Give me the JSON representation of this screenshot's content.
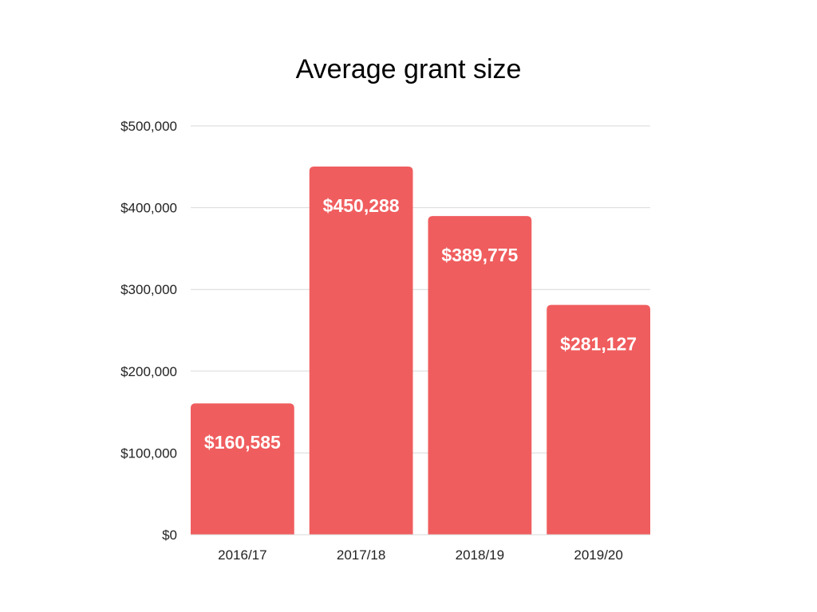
{
  "chart_data": {
    "type": "bar",
    "title": "Average grant size",
    "xlabel": "",
    "ylabel": "",
    "categories": [
      "2016/17",
      "2017/18",
      "2018/19",
      "2019/20"
    ],
    "values": [
      160585,
      450288,
      389775,
      281127
    ],
    "value_labels": [
      "$160,585",
      "$450,288",
      "$389,775",
      "$281,127"
    ],
    "ylim": [
      0,
      500000
    ],
    "y_ticks": [
      0,
      100000,
      200000,
      300000,
      400000,
      500000
    ],
    "y_tick_labels": [
      "$0",
      "$100,000",
      "$200,000",
      "$300,000",
      "$400,000",
      "$500,000"
    ],
    "grid": true,
    "legend": "none",
    "bar_color": "#f05d5e",
    "grid_color": "#d9d9d9"
  }
}
